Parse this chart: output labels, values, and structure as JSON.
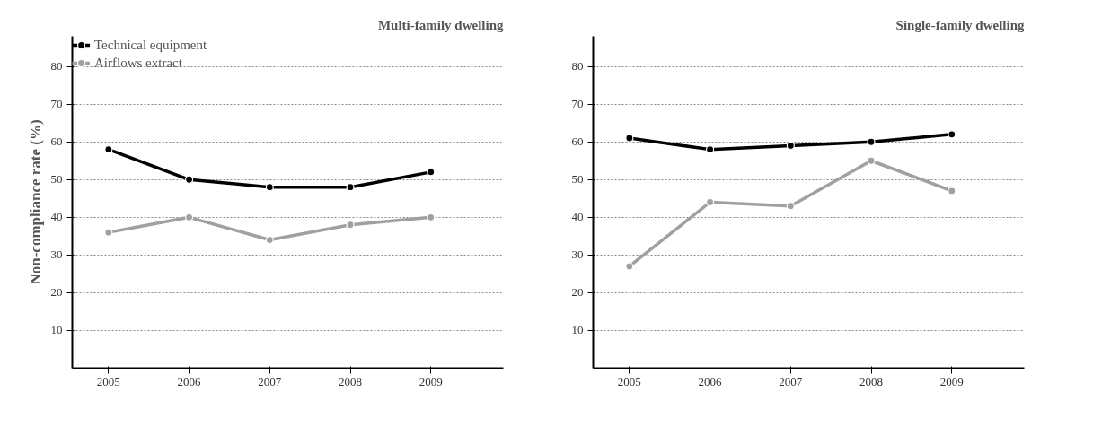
{
  "chart_data": [
    {
      "type": "line",
      "title": "Multi-family dwelling",
      "ylabel": "Non-compliance rate (%)",
      "categories": [
        "2005",
        "2006",
        "2007",
        "2008",
        "2009"
      ],
      "series": [
        {
          "name": "Technical equipment",
          "color": "#000000",
          "values": [
            58,
            50,
            48,
            48,
            52
          ]
        },
        {
          "name": "Airflows extract",
          "color": "#a0a0a0",
          "values": [
            36,
            40,
            34,
            38,
            40
          ]
        }
      ],
      "ylim": [
        0,
        88
      ],
      "yticks": [
        10,
        20,
        30,
        40,
        50,
        60,
        70,
        80
      ],
      "grid": "y",
      "legend": "top left",
      "marker": "circle",
      "line_style": "solid"
    },
    {
      "type": "line",
      "title": "Single-family dwelling",
      "categories": [
        "2005",
        "2006",
        "2007",
        "2008",
        "2009"
      ],
      "series": [
        {
          "color": "#000000",
          "values": [
            61,
            58,
            59,
            60,
            62
          ]
        },
        {
          "color": "#a0a0a0",
          "values": [
            27,
            44,
            43,
            55,
            47
          ]
        }
      ],
      "ylim": [
        0,
        88
      ],
      "yticks": [
        10,
        20,
        30,
        40,
        50,
        60,
        70,
        80
      ],
      "grid": "y",
      "marker": "circle",
      "line_style": "solid"
    }
  ]
}
